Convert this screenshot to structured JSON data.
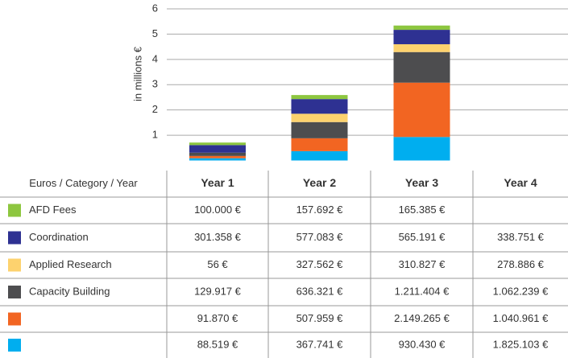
{
  "chart_data": {
    "type": "bar",
    "stacked": true,
    "ylabel": "in millions €",
    "ylim": [
      0,
      6
    ],
    "yticks": [
      1,
      2,
      3,
      4,
      5,
      6
    ],
    "grid": true,
    "categories": [
      null,
      null,
      null
    ],
    "series": [
      {
        "color": "#00aeef",
        "values": [
          0.09,
          0.37,
          0.93
        ]
      },
      {
        "color": "#f26522",
        "values": [
          0.09,
          0.51,
          2.15
        ]
      },
      {
        "color": "#4d4d4f",
        "values": [
          0.13,
          0.64,
          1.21
        ]
      },
      {
        "color": "#fdd26e",
        "values": [
          0.0001,
          0.33,
          0.31
        ]
      },
      {
        "color": "#2e3192",
        "values": [
          0.3,
          0.58,
          0.57
        ]
      },
      {
        "color": "#8dc63f",
        "values": [
          0.1,
          0.16,
          0.17
        ]
      }
    ]
  },
  "table": {
    "header": [
      "Euros / Category / Year",
      "Year 1",
      "Year 2",
      "Year 3",
      "Year 4"
    ],
    "rows": [
      {
        "label": "AFD Fees",
        "color": "#8dc63f",
        "cells": [
          "100.000 €",
          "157.692 €",
          "165.385 €",
          null
        ]
      },
      {
        "label": "Coordination",
        "color": "#2e3192",
        "cells": [
          "301.358 €",
          "577.083 €",
          "565.191 €",
          "338.751 €"
        ]
      },
      {
        "label": "Applied Research",
        "color": "#fdd26e",
        "cells": [
          "56 €",
          "327.562 €",
          "310.827 €",
          "278.886 €"
        ]
      },
      {
        "label": "Capacity Building",
        "color": "#4d4d4f",
        "cells": [
          "129.917 €",
          "636.321 €",
          "1.211.404 €",
          "1.062.239 €"
        ]
      },
      {
        "label": null,
        "color": "#f26522",
        "cells": [
          "91.870 €",
          "507.959 €",
          "2.149.265 €",
          "1.040.961 €"
        ]
      },
      {
        "label": null,
        "color": "#00aeef",
        "cells": [
          "88.519 €",
          "367.741 €",
          "930.430 €",
          "1.825.103 €"
        ]
      }
    ]
  }
}
